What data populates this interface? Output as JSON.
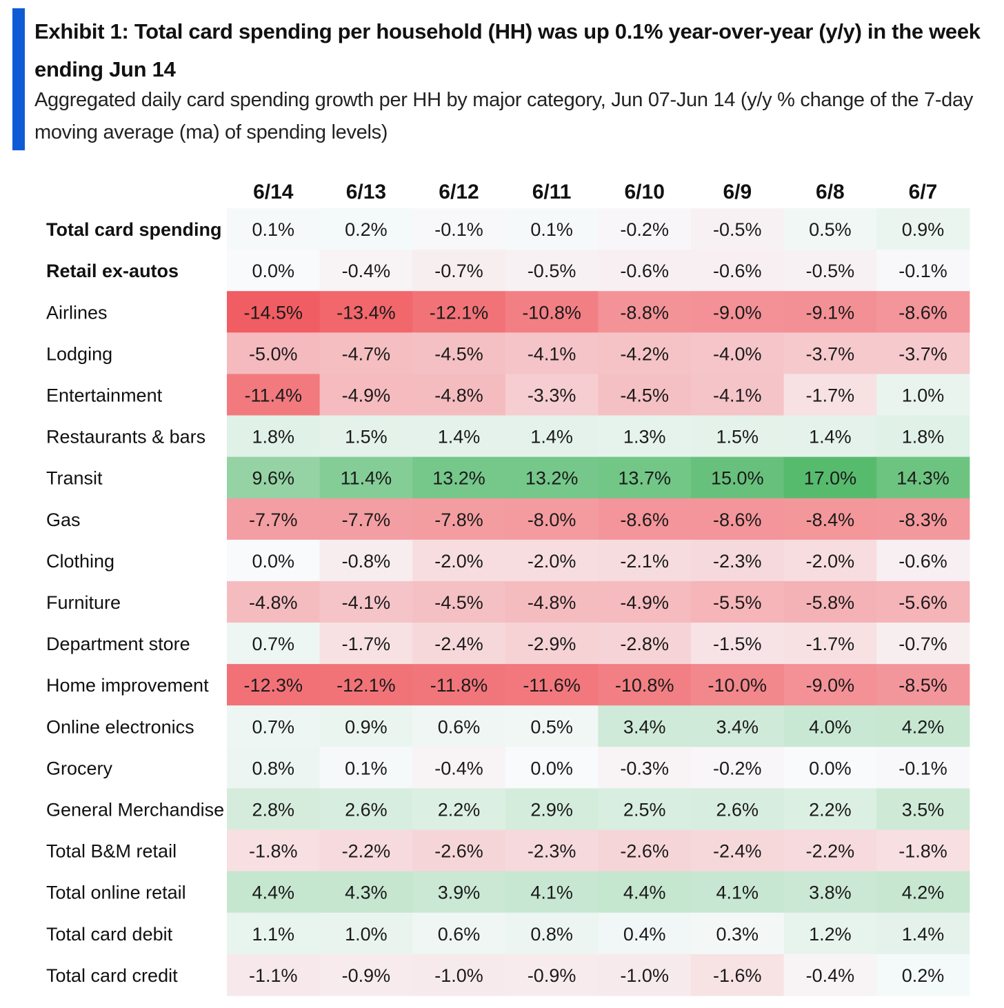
{
  "exhibit": {
    "title": "Exhibit 1: Total card spending per household (HH) was up 0.1% year-over-year (y/y) in the week ending Jun 14",
    "subtitle": "Aggregated daily card spending growth per HH by major category, Jun 07-Jun 14 (y/y % change of the 7-day moving average (ma) of spending levels)",
    "accent_color": "#0f5bd6"
  },
  "chart_data": {
    "type": "heatmap",
    "unit": "%",
    "columns": [
      "6/14",
      "6/13",
      "6/12",
      "6/11",
      "6/10",
      "6/9",
      "6/8",
      "6/7"
    ],
    "rows": [
      {
        "label": "Total card spending",
        "bold": true,
        "values": [
          0.1,
          0.2,
          -0.1,
          0.1,
          -0.2,
          -0.5,
          0.5,
          0.9
        ]
      },
      {
        "label": "Retail ex-autos",
        "bold": true,
        "values": [
          0.0,
          -0.4,
          -0.7,
          -0.5,
          -0.6,
          -0.6,
          -0.5,
          -0.1
        ]
      },
      {
        "label": "Airlines",
        "bold": false,
        "values": [
          -14.5,
          -13.4,
          -12.1,
          -10.8,
          -8.8,
          -9.0,
          -9.1,
          -8.6
        ]
      },
      {
        "label": "Lodging",
        "bold": false,
        "values": [
          -5.0,
          -4.7,
          -4.5,
          -4.1,
          -4.2,
          -4.0,
          -3.7,
          -3.7
        ]
      },
      {
        "label": "Entertainment",
        "bold": false,
        "values": [
          -11.4,
          -4.9,
          -4.8,
          -3.3,
          -4.5,
          -4.1,
          -1.7,
          1.0
        ]
      },
      {
        "label": "Restaurants & bars",
        "bold": false,
        "values": [
          1.8,
          1.5,
          1.4,
          1.4,
          1.3,
          1.5,
          1.4,
          1.8
        ]
      },
      {
        "label": "Transit",
        "bold": false,
        "values": [
          9.6,
          11.4,
          13.2,
          13.2,
          13.7,
          15.0,
          17.0,
          14.3
        ]
      },
      {
        "label": "Gas",
        "bold": false,
        "values": [
          -7.7,
          -7.7,
          -7.8,
          -8.0,
          -8.6,
          -8.6,
          -8.4,
          -8.3
        ]
      },
      {
        "label": "Clothing",
        "bold": false,
        "values": [
          0.0,
          -0.8,
          -2.0,
          -2.0,
          -2.1,
          -2.3,
          -2.0,
          -0.6
        ]
      },
      {
        "label": "Furniture",
        "bold": false,
        "values": [
          -4.8,
          -4.1,
          -4.5,
          -4.8,
          -4.9,
          -5.5,
          -5.8,
          -5.6
        ]
      },
      {
        "label": "Department store",
        "bold": false,
        "values": [
          0.7,
          -1.7,
          -2.4,
          -2.9,
          -2.8,
          -1.5,
          -1.7,
          -0.7
        ]
      },
      {
        "label": "Home improvement",
        "bold": false,
        "values": [
          -12.3,
          -12.1,
          -11.8,
          -11.6,
          -10.8,
          -10.0,
          -9.0,
          -8.5
        ]
      },
      {
        "label": "Online electronics",
        "bold": false,
        "values": [
          0.7,
          0.9,
          0.6,
          0.5,
          3.4,
          3.4,
          4.0,
          4.2
        ]
      },
      {
        "label": "Grocery",
        "bold": false,
        "values": [
          0.8,
          0.1,
          -0.4,
          0.0,
          -0.3,
          -0.2,
          0.0,
          -0.1
        ]
      },
      {
        "label": "General Merchandise",
        "bold": false,
        "values": [
          2.8,
          2.6,
          2.2,
          2.9,
          2.5,
          2.6,
          2.2,
          3.5
        ]
      },
      {
        "label": "Total B&M retail",
        "bold": false,
        "values": [
          -1.8,
          -2.2,
          -2.6,
          -2.3,
          -2.6,
          -2.4,
          -2.2,
          -1.8
        ]
      },
      {
        "label": "Total online retail",
        "bold": false,
        "values": [
          4.4,
          4.3,
          3.9,
          4.1,
          4.4,
          4.1,
          3.8,
          4.2
        ]
      },
      {
        "label": "Total card debit",
        "bold": false,
        "values": [
          1.1,
          1.0,
          0.6,
          0.8,
          0.4,
          0.3,
          1.2,
          1.4
        ]
      },
      {
        "label": "Total card credit",
        "bold": false,
        "values": [
          -1.1,
          -0.9,
          -1.0,
          -0.9,
          -1.0,
          -1.6,
          -0.4,
          0.2
        ]
      }
    ],
    "color_scale": {
      "negative": "#f0585e",
      "neutral": "#f8fafc",
      "positive": "#4fb867",
      "neg_extreme": -15,
      "pos_extreme": 18
    }
  }
}
